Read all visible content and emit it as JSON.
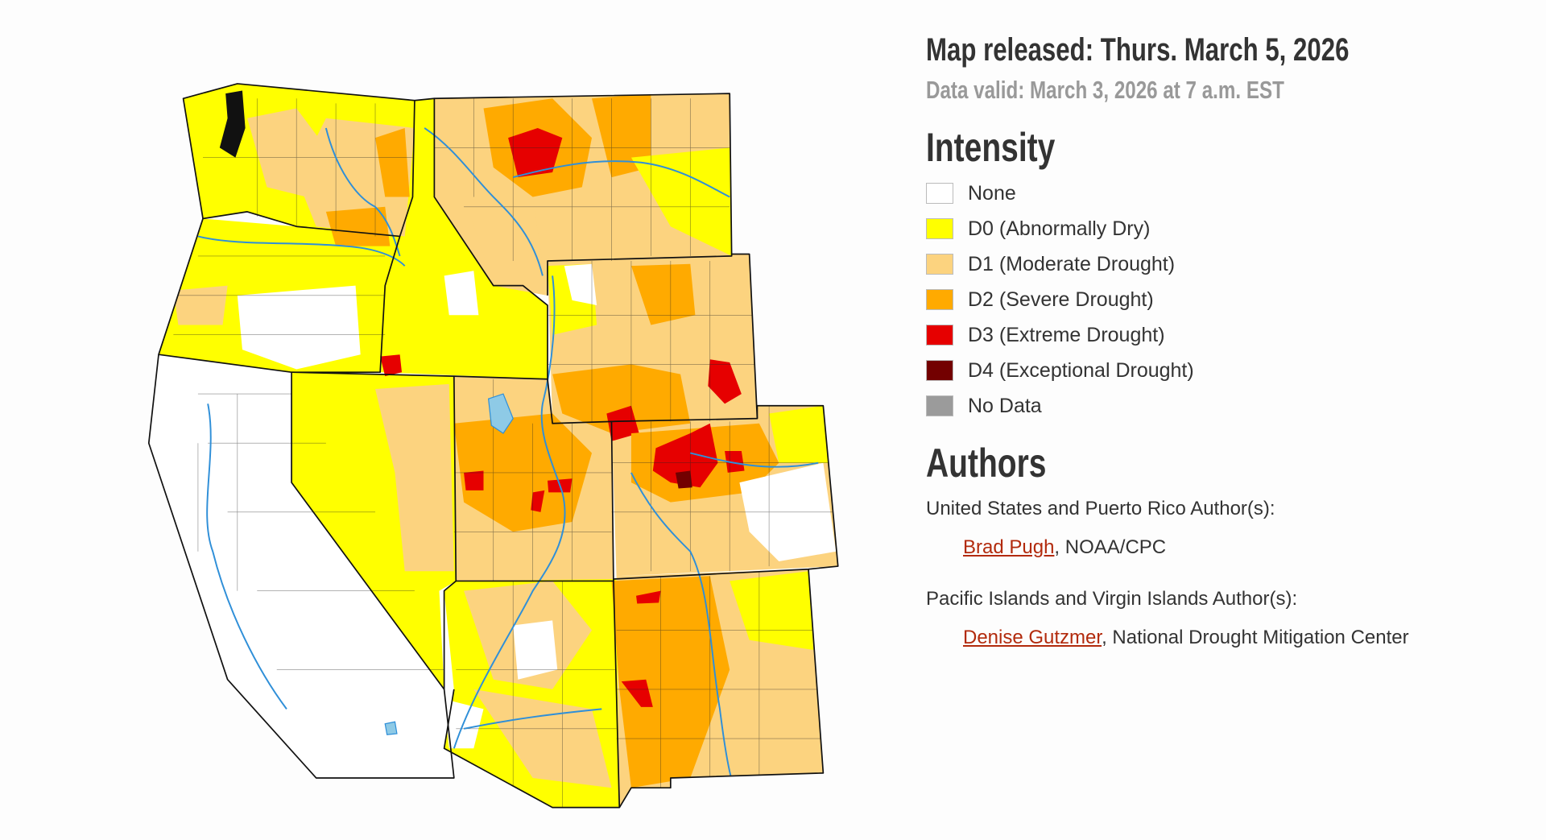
{
  "header": {
    "released": "Map released: Thurs. March 5, 2026",
    "valid": "Data valid: March 3, 2026 at 7 a.m. EST"
  },
  "legend": {
    "title": "Intensity",
    "items": [
      {
        "code": "",
        "label": "None",
        "color": "#ffffff"
      },
      {
        "code": "D0",
        "label": "(Abnormally Dry)",
        "color": "#ffff00"
      },
      {
        "code": "D1",
        "label": "(Moderate Drought)",
        "color": "#fcd37f"
      },
      {
        "code": "D2",
        "label": "(Severe Drought)",
        "color": "#ffaa00"
      },
      {
        "code": "D3",
        "label": "(Extreme Drought)",
        "color": "#e60000"
      },
      {
        "code": "D4",
        "label": "(Exceptional Drought)",
        "color": "#730000"
      },
      {
        "code": "",
        "label": "No Data",
        "color": "#9b9b9b"
      }
    ]
  },
  "authors": {
    "title": "Authors",
    "groups": [
      {
        "label": "United States and Puerto Rico Author(s):",
        "name": "Brad Pugh",
        "affiliation": ", NOAA/CPC"
      },
      {
        "label": "Pacific Islands and Virgin Islands Author(s):",
        "name": "Denise Gutzmer",
        "affiliation": ", National Drought Mitigation Center"
      }
    ]
  },
  "map": {
    "link_color": "#b22a0c",
    "river_color": "#2f8fd8"
  }
}
